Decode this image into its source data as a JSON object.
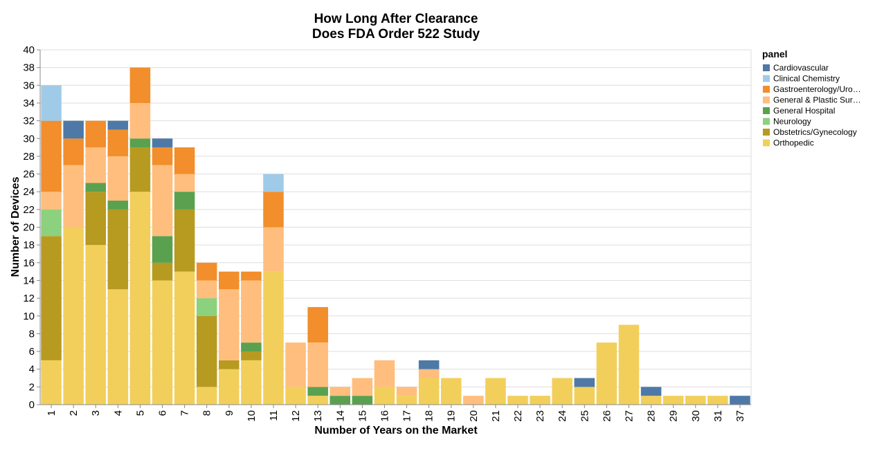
{
  "chart_data": {
    "type": "bar",
    "stacked": true,
    "title": [
      "How Long After Clearance",
      "Does FDA Order 522 Study"
    ],
    "xlabel": "Number of Years on the Market",
    "ylabel": "Number of Devices",
    "ylim": [
      0,
      40
    ],
    "yticks": [
      0,
      2,
      4,
      6,
      8,
      10,
      12,
      14,
      16,
      18,
      20,
      22,
      24,
      26,
      28,
      30,
      32,
      34,
      36,
      38,
      40
    ],
    "grid": true,
    "legend": {
      "title": "panel",
      "placement": "right"
    },
    "categories": [
      "1",
      "2",
      "3",
      "4",
      "5",
      "6",
      "7",
      "8",
      "9",
      "10",
      "11",
      "12",
      "13",
      "14",
      "15",
      "16",
      "17",
      "18",
      "19",
      "20",
      "21",
      "22",
      "23",
      "24",
      "25",
      "26",
      "27",
      "28",
      "29",
      "30",
      "31",
      "37"
    ],
    "series": [
      {
        "name": "Orthopedic",
        "legend_label": "Orthopedic",
        "color": "#f2cf5b",
        "values": [
          5,
          20,
          18,
          13,
          24,
          14,
          15,
          2,
          4,
          5,
          15,
          2,
          1,
          0,
          0,
          2,
          1,
          3,
          3,
          0,
          3,
          1,
          1,
          3,
          2,
          7,
          9,
          1,
          1,
          1,
          1,
          0
        ]
      },
      {
        "name": "Obstetrics/Gynecology",
        "legend_label": "Obstetrics/Gynecology",
        "color": "#b79a20",
        "values": [
          14,
          0,
          6,
          9,
          5,
          2,
          7,
          8,
          1,
          1,
          0,
          0,
          0,
          0,
          0,
          0,
          0,
          0,
          0,
          0,
          0,
          0,
          0,
          0,
          0,
          0,
          0,
          0,
          0,
          0,
          0,
          0
        ]
      },
      {
        "name": "Neurology",
        "legend_label": "Neurology",
        "color": "#8cd17d",
        "values": [
          3,
          0,
          0,
          0,
          0,
          0,
          0,
          2,
          0,
          0,
          0,
          0,
          0,
          0,
          0,
          0,
          0,
          0,
          0,
          0,
          0,
          0,
          0,
          0,
          0,
          0,
          0,
          0,
          0,
          0,
          0,
          0
        ]
      },
      {
        "name": "General Hospital",
        "legend_label": "General Hospital",
        "color": "#59a14f",
        "values": [
          0,
          0,
          1,
          1,
          1,
          3,
          2,
          0,
          0,
          1,
          0,
          0,
          1,
          1,
          1,
          0,
          0,
          0,
          0,
          0,
          0,
          0,
          0,
          0,
          0,
          0,
          0,
          0,
          0,
          0,
          0,
          0
        ]
      },
      {
        "name": "General & Plastic Surgery",
        "legend_label": "General & Plastic Sur…",
        "color": "#ffbe7d",
        "values": [
          2,
          7,
          4,
          5,
          4,
          8,
          2,
          2,
          8,
          7,
          5,
          5,
          5,
          1,
          2,
          3,
          1,
          1,
          0,
          1,
          0,
          0,
          0,
          0,
          0,
          0,
          0,
          0,
          0,
          0,
          0,
          0
        ]
      },
      {
        "name": "Gastroenterology/Urology",
        "legend_label": "Gastroenterology/Uro…",
        "color": "#f28e2b",
        "values": [
          8,
          3,
          3,
          3,
          4,
          2,
          3,
          2,
          2,
          1,
          4,
          0,
          4,
          0,
          0,
          0,
          0,
          0,
          0,
          0,
          0,
          0,
          0,
          0,
          0,
          0,
          0,
          0,
          0,
          0,
          0,
          0
        ]
      },
      {
        "name": "Clinical Chemistry",
        "legend_label": "Clinical Chemistry",
        "color": "#a0cbe8",
        "values": [
          4,
          0,
          0,
          0,
          0,
          0,
          0,
          0,
          0,
          0,
          2,
          0,
          0,
          0,
          0,
          0,
          0,
          0,
          0,
          0,
          0,
          0,
          0,
          0,
          0,
          0,
          0,
          0,
          0,
          0,
          0,
          0
        ]
      },
      {
        "name": "Cardiovascular",
        "legend_label": "Cardiovascular",
        "color": "#4e79a7",
        "values": [
          0,
          2,
          0,
          1,
          0,
          1,
          0,
          0,
          0,
          0,
          0,
          0,
          0,
          0,
          0,
          0,
          0,
          1,
          0,
          0,
          0,
          0,
          0,
          0,
          1,
          0,
          0,
          1,
          0,
          0,
          0,
          1
        ]
      }
    ],
    "legend_order": [
      "Cardiovascular",
      "Clinical Chemistry",
      "Gastroenterology/Urology",
      "General & Plastic Surgery",
      "General Hospital",
      "Neurology",
      "Obstetrics/Gynecology",
      "Orthopedic"
    ]
  }
}
